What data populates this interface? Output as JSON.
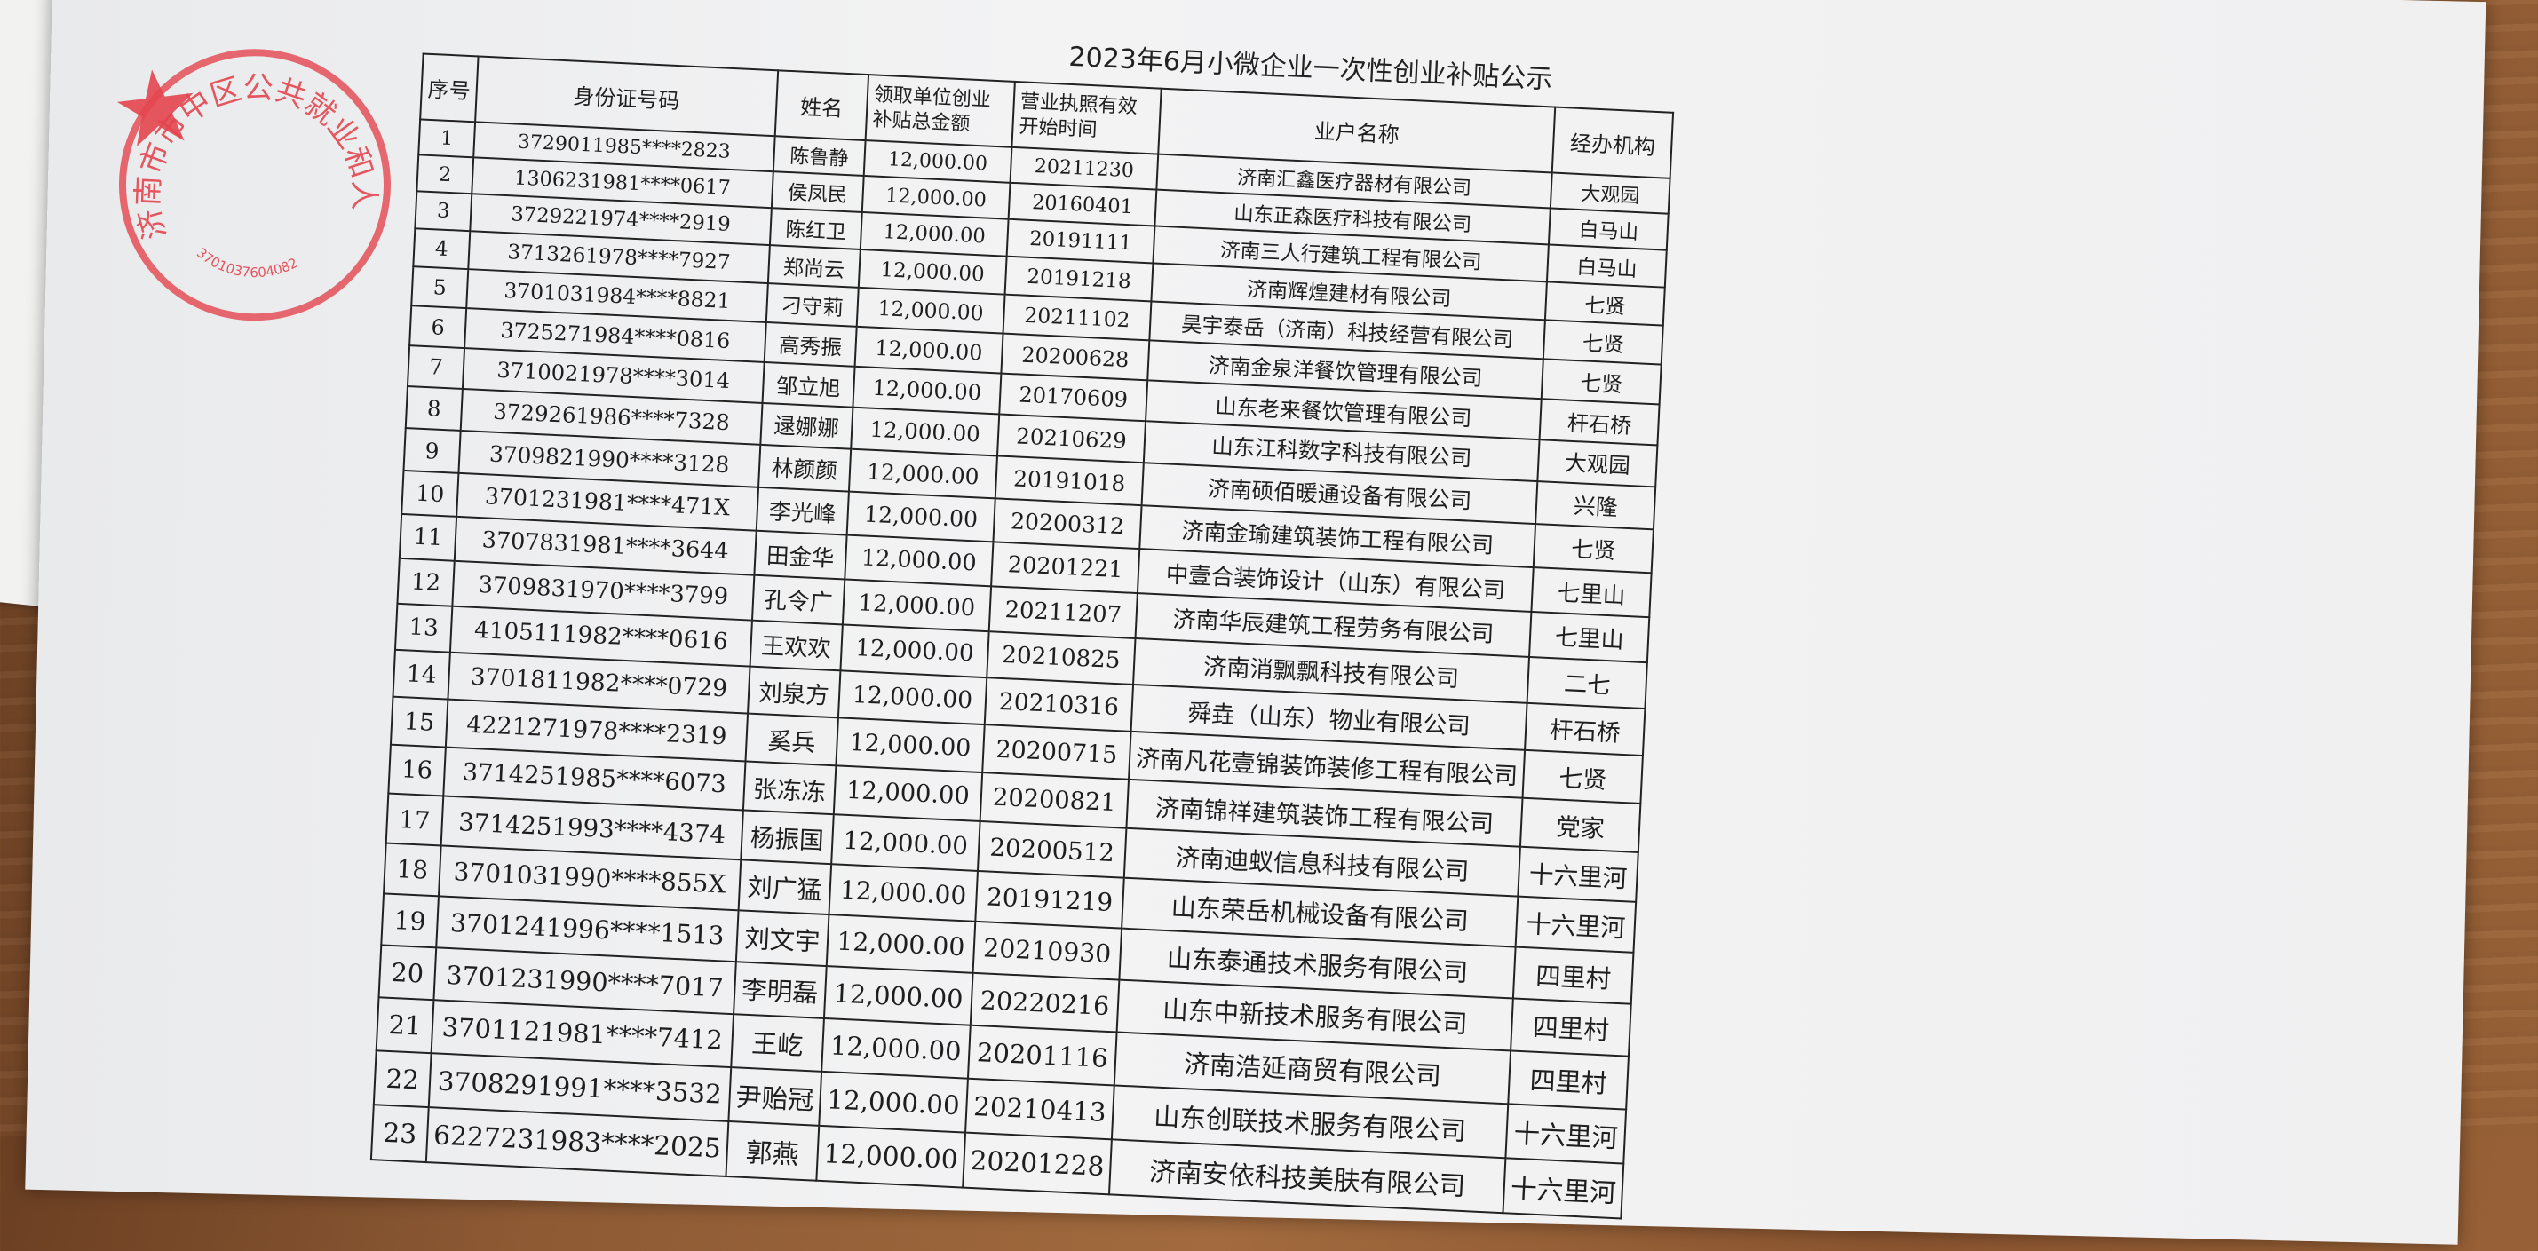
{
  "document": {
    "title": "2023年6月小微企业一次性创业补贴公示",
    "columns": [
      "序号",
      "身份证号码",
      "姓名",
      "领取单位创业补贴总金额",
      "营业执照有效开始时间",
      "业户名称",
      "经办机构"
    ],
    "rows": [
      [
        "1",
        "3729011985****2823",
        "陈鲁静",
        "12,000.00",
        "20211230",
        "济南汇鑫医疗器材有限公司",
        "大观园"
      ],
      [
        "2",
        "1306231981****0617",
        "侯凤民",
        "12,000.00",
        "20160401",
        "山东正森医疗科技有限公司",
        "白马山"
      ],
      [
        "3",
        "3729221974****2919",
        "陈红卫",
        "12,000.00",
        "20191111",
        "济南三人行建筑工程有限公司",
        "白马山"
      ],
      [
        "4",
        "3713261978****7927",
        "郑尚云",
        "12,000.00",
        "20191218",
        "济南辉煌建材有限公司",
        "七贤"
      ],
      [
        "5",
        "3701031984****8821",
        "刁守莉",
        "12,000.00",
        "20211102",
        "昊宇泰岳（济南）科技经营有限公司",
        "七贤"
      ],
      [
        "6",
        "3725271984****0816",
        "高秀振",
        "12,000.00",
        "20200628",
        "济南金泉洋餐饮管理有限公司",
        "七贤"
      ],
      [
        "7",
        "3710021978****3014",
        "邹立旭",
        "12,000.00",
        "20170609",
        "山东老来餐饮管理有限公司",
        "杆石桥"
      ],
      [
        "8",
        "3729261986****7328",
        "逯娜娜",
        "12,000.00",
        "20210629",
        "山东江科数字科技有限公司",
        "大观园"
      ],
      [
        "9",
        "3709821990****3128",
        "林颜颜",
        "12,000.00",
        "20191018",
        "济南硕佰暖通设备有限公司",
        "兴隆"
      ],
      [
        "10",
        "3701231981****471X",
        "李光峰",
        "12,000.00",
        "20200312",
        "济南金瑜建筑装饰工程有限公司",
        "七贤"
      ],
      [
        "11",
        "3707831981****3644",
        "田金华",
        "12,000.00",
        "20201221",
        "中壹合装饰设计（山东）有限公司",
        "七里山"
      ],
      [
        "12",
        "3709831970****3799",
        "孔令广",
        "12,000.00",
        "20211207",
        "济南华辰建筑工程劳务有限公司",
        "七里山"
      ],
      [
        "13",
        "4105111982****0616",
        "王欢欢",
        "12,000.00",
        "20210825",
        "济南消飘飘科技有限公司",
        "二七"
      ],
      [
        "14",
        "3701811982****0729",
        "刘泉方",
        "12,000.00",
        "20210316",
        "舜垚（山东）物业有限公司",
        "杆石桥"
      ],
      [
        "15",
        "4221271978****2319",
        "奚兵",
        "12,000.00",
        "20200715",
        "济南凡花壹锦装饰装修工程有限公司",
        "七贤"
      ],
      [
        "16",
        "3714251985****6073",
        "张冻冻",
        "12,000.00",
        "20200821",
        "济南锦祥建筑装饰工程有限公司",
        "党家"
      ],
      [
        "17",
        "3714251993****4374",
        "杨振国",
        "12,000.00",
        "20200512",
        "济南迪蚁信息科技有限公司",
        "十六里河"
      ],
      [
        "18",
        "3701031990****855X",
        "刘广猛",
        "12,000.00",
        "20191219",
        "山东荣岳机械设备有限公司",
        "十六里河"
      ],
      [
        "19",
        "3701241996****1513",
        "刘文宇",
        "12,000.00",
        "20210930",
        "山东泰通技术服务有限公司",
        "四里村"
      ],
      [
        "20",
        "3701231990****7017",
        "李明磊",
        "12,000.00",
        "20220216",
        "山东中新技术服务有限公司",
        "四里村"
      ],
      [
        "21",
        "3701121981****7412",
        "王屹",
        "12,000.00",
        "20201116",
        "济南浩延商贸有限公司",
        "四里村"
      ],
      [
        "22",
        "3708291991****3532",
        "尹贻冠",
        "12,000.00",
        "20210413",
        "山东创联技术服务有限公司",
        "十六里河"
      ],
      [
        "23",
        "6227231983****2025",
        "郭燕",
        "12,000.00",
        "20201228",
        "济南安依科技美肤有限公司",
        "十六里河"
      ]
    ]
  },
  "stamp": {
    "text": "济南市市中区公共就业和人才服务中心",
    "code": "3701037604082",
    "color": "#e22832"
  }
}
